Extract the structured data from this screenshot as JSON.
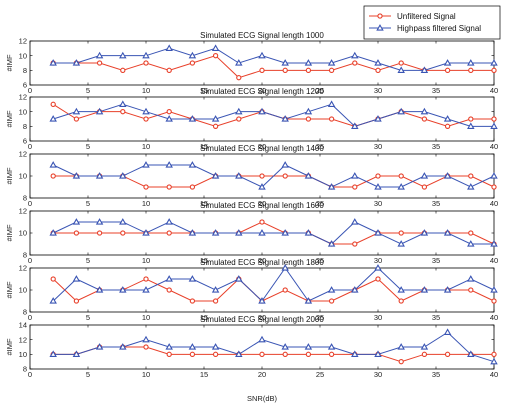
{
  "figure": {
    "xlabel": "SNR(dB)",
    "legend": {
      "placement": "top-right",
      "entries": [
        {
          "label": "Unfiltered Signal",
          "color": "#e8402a",
          "marker": "circle"
        },
        {
          "label": "Highpass filtered Signal",
          "color": "#3a55b4",
          "marker": "triangle"
        }
      ]
    }
  },
  "chart_data": [
    {
      "type": "line",
      "title": "Simulated ECG Signal length 1000",
      "ylabel": "#IMF",
      "xlim": [
        0,
        40
      ],
      "ylim": [
        6,
        12
      ],
      "x": [
        2,
        4,
        6,
        8,
        10,
        12,
        14,
        16,
        18,
        20,
        22,
        24,
        26,
        28,
        30,
        32,
        34,
        36,
        38,
        40
      ],
      "xticks": [
        0,
        5,
        10,
        15,
        20,
        25,
        30,
        35,
        40
      ],
      "yticks": [
        6,
        8,
        10,
        12
      ],
      "series": [
        {
          "name": "Unfiltered Signal",
          "values": [
            9,
            9,
            9,
            8,
            9,
            8,
            9,
            10,
            7,
            8,
            8,
            8,
            8,
            9,
            8,
            9,
            8,
            8,
            8,
            8
          ]
        },
        {
          "name": "Highpass filtered Signal",
          "values": [
            9,
            9,
            10,
            10,
            10,
            11,
            10,
            11,
            9,
            10,
            9,
            9,
            9,
            10,
            9,
            8,
            8,
            9,
            9,
            9
          ]
        }
      ]
    },
    {
      "type": "line",
      "title": "Simulated ECG Signal length 1200",
      "ylabel": "#IMF",
      "xlim": [
        0,
        40
      ],
      "ylim": [
        6,
        12
      ],
      "x": [
        2,
        4,
        6,
        8,
        10,
        12,
        14,
        16,
        18,
        20,
        22,
        24,
        26,
        28,
        30,
        32,
        34,
        36,
        38,
        40
      ],
      "xticks": [
        0,
        5,
        10,
        15,
        20,
        25,
        30,
        35,
        40
      ],
      "yticks": [
        6,
        8,
        10,
        12
      ],
      "series": [
        {
          "name": "Unfiltered Signal",
          "values": [
            11,
            9,
            10,
            10,
            9,
            10,
            9,
            8,
            9,
            10,
            9,
            9,
            9,
            8,
            9,
            10,
            9,
            8,
            9,
            9
          ]
        },
        {
          "name": "Highpass filtered Signal",
          "values": [
            9,
            10,
            10,
            11,
            10,
            9,
            9,
            9,
            10,
            10,
            9,
            10,
            11,
            8,
            9,
            10,
            10,
            9,
            8,
            8
          ]
        }
      ]
    },
    {
      "type": "line",
      "title": "Simulated ECG Signal length 1400",
      "ylabel": "#IMF",
      "xlim": [
        0,
        40
      ],
      "ylim": [
        8,
        12
      ],
      "x": [
        2,
        4,
        6,
        8,
        10,
        12,
        14,
        16,
        18,
        20,
        22,
        24,
        26,
        28,
        30,
        32,
        34,
        36,
        38,
        40
      ],
      "xticks": [
        0,
        5,
        10,
        15,
        20,
        25,
        30,
        35,
        40
      ],
      "yticks": [
        8,
        10,
        12
      ],
      "series": [
        {
          "name": "Unfiltered Signal",
          "values": [
            10,
            10,
            10,
            10,
            9,
            9,
            9,
            10,
            10,
            10,
            10,
            10,
            9,
            9,
            10,
            10,
            9,
            10,
            10,
            9
          ]
        },
        {
          "name": "Highpass filtered Signal",
          "values": [
            11,
            10,
            10,
            10,
            11,
            11,
            11,
            10,
            10,
            9,
            11,
            10,
            9,
            10,
            9,
            9,
            10,
            10,
            9,
            10
          ]
        }
      ]
    },
    {
      "type": "line",
      "title": "Simulated ECG Signal length 1600",
      "ylabel": "#IMF",
      "xlim": [
        0,
        40
      ],
      "ylim": [
        8,
        12
      ],
      "x": [
        2,
        4,
        6,
        8,
        10,
        12,
        14,
        16,
        18,
        20,
        22,
        24,
        26,
        28,
        30,
        32,
        34,
        36,
        38,
        40
      ],
      "xticks": [
        0,
        5,
        10,
        15,
        20,
        25,
        30,
        35,
        40
      ],
      "yticks": [
        8,
        10,
        12
      ],
      "series": [
        {
          "name": "Unfiltered Signal",
          "values": [
            10,
            10,
            10,
            10,
            10,
            10,
            10,
            10,
            10,
            11,
            10,
            10,
            9,
            9,
            10,
            10,
            10,
            10,
            10,
            9
          ]
        },
        {
          "name": "Highpass filtered Signal",
          "values": [
            10,
            11,
            11,
            11,
            10,
            11,
            10,
            10,
            10,
            10,
            10,
            10,
            9,
            11,
            10,
            9,
            10,
            10,
            9,
            9
          ]
        }
      ]
    },
    {
      "type": "line",
      "title": "Simulated ECG Signal length 1800",
      "ylabel": "#IMF",
      "xlim": [
        0,
        40
      ],
      "ylim": [
        8,
        12
      ],
      "x": [
        2,
        4,
        6,
        8,
        10,
        12,
        14,
        16,
        18,
        20,
        22,
        24,
        26,
        28,
        30,
        32,
        34,
        36,
        38,
        40
      ],
      "xticks": [
        0,
        5,
        10,
        15,
        20,
        25,
        30,
        35,
        40
      ],
      "yticks": [
        8,
        10,
        12
      ],
      "series": [
        {
          "name": "Unfiltered Signal",
          "values": [
            11,
            9,
            10,
            10,
            11,
            10,
            9,
            9,
            11,
            9,
            10,
            9,
            9,
            10,
            11,
            9,
            10,
            10,
            10,
            9
          ]
        },
        {
          "name": "Highpass filtered Signal",
          "values": [
            9,
            11,
            10,
            10,
            10,
            11,
            11,
            10,
            11,
            9,
            12,
            9,
            10,
            10,
            12,
            10,
            10,
            10,
            11,
            10
          ]
        }
      ]
    },
    {
      "type": "line",
      "title": "Simulated ECG Signal length 2000",
      "ylabel": "#IMF",
      "xlim": [
        0,
        40
      ],
      "ylim": [
        8,
        14
      ],
      "x": [
        2,
        4,
        6,
        8,
        10,
        12,
        14,
        16,
        18,
        20,
        22,
        24,
        26,
        28,
        30,
        32,
        34,
        36,
        38,
        40
      ],
      "xticks": [
        0,
        5,
        10,
        15,
        20,
        25,
        30,
        35,
        40
      ],
      "yticks": [
        8,
        10,
        12,
        14
      ],
      "series": [
        {
          "name": "Unfiltered Signal",
          "values": [
            10,
            10,
            11,
            11,
            11,
            10,
            10,
            10,
            10,
            10,
            10,
            10,
            10,
            10,
            10,
            9,
            10,
            10,
            10,
            10
          ]
        },
        {
          "name": "Highpass filtered Signal",
          "values": [
            10,
            10,
            11,
            11,
            12,
            11,
            11,
            11,
            10,
            12,
            11,
            11,
            11,
            10,
            10,
            11,
            11,
            13,
            10,
            9
          ]
        }
      ]
    }
  ]
}
